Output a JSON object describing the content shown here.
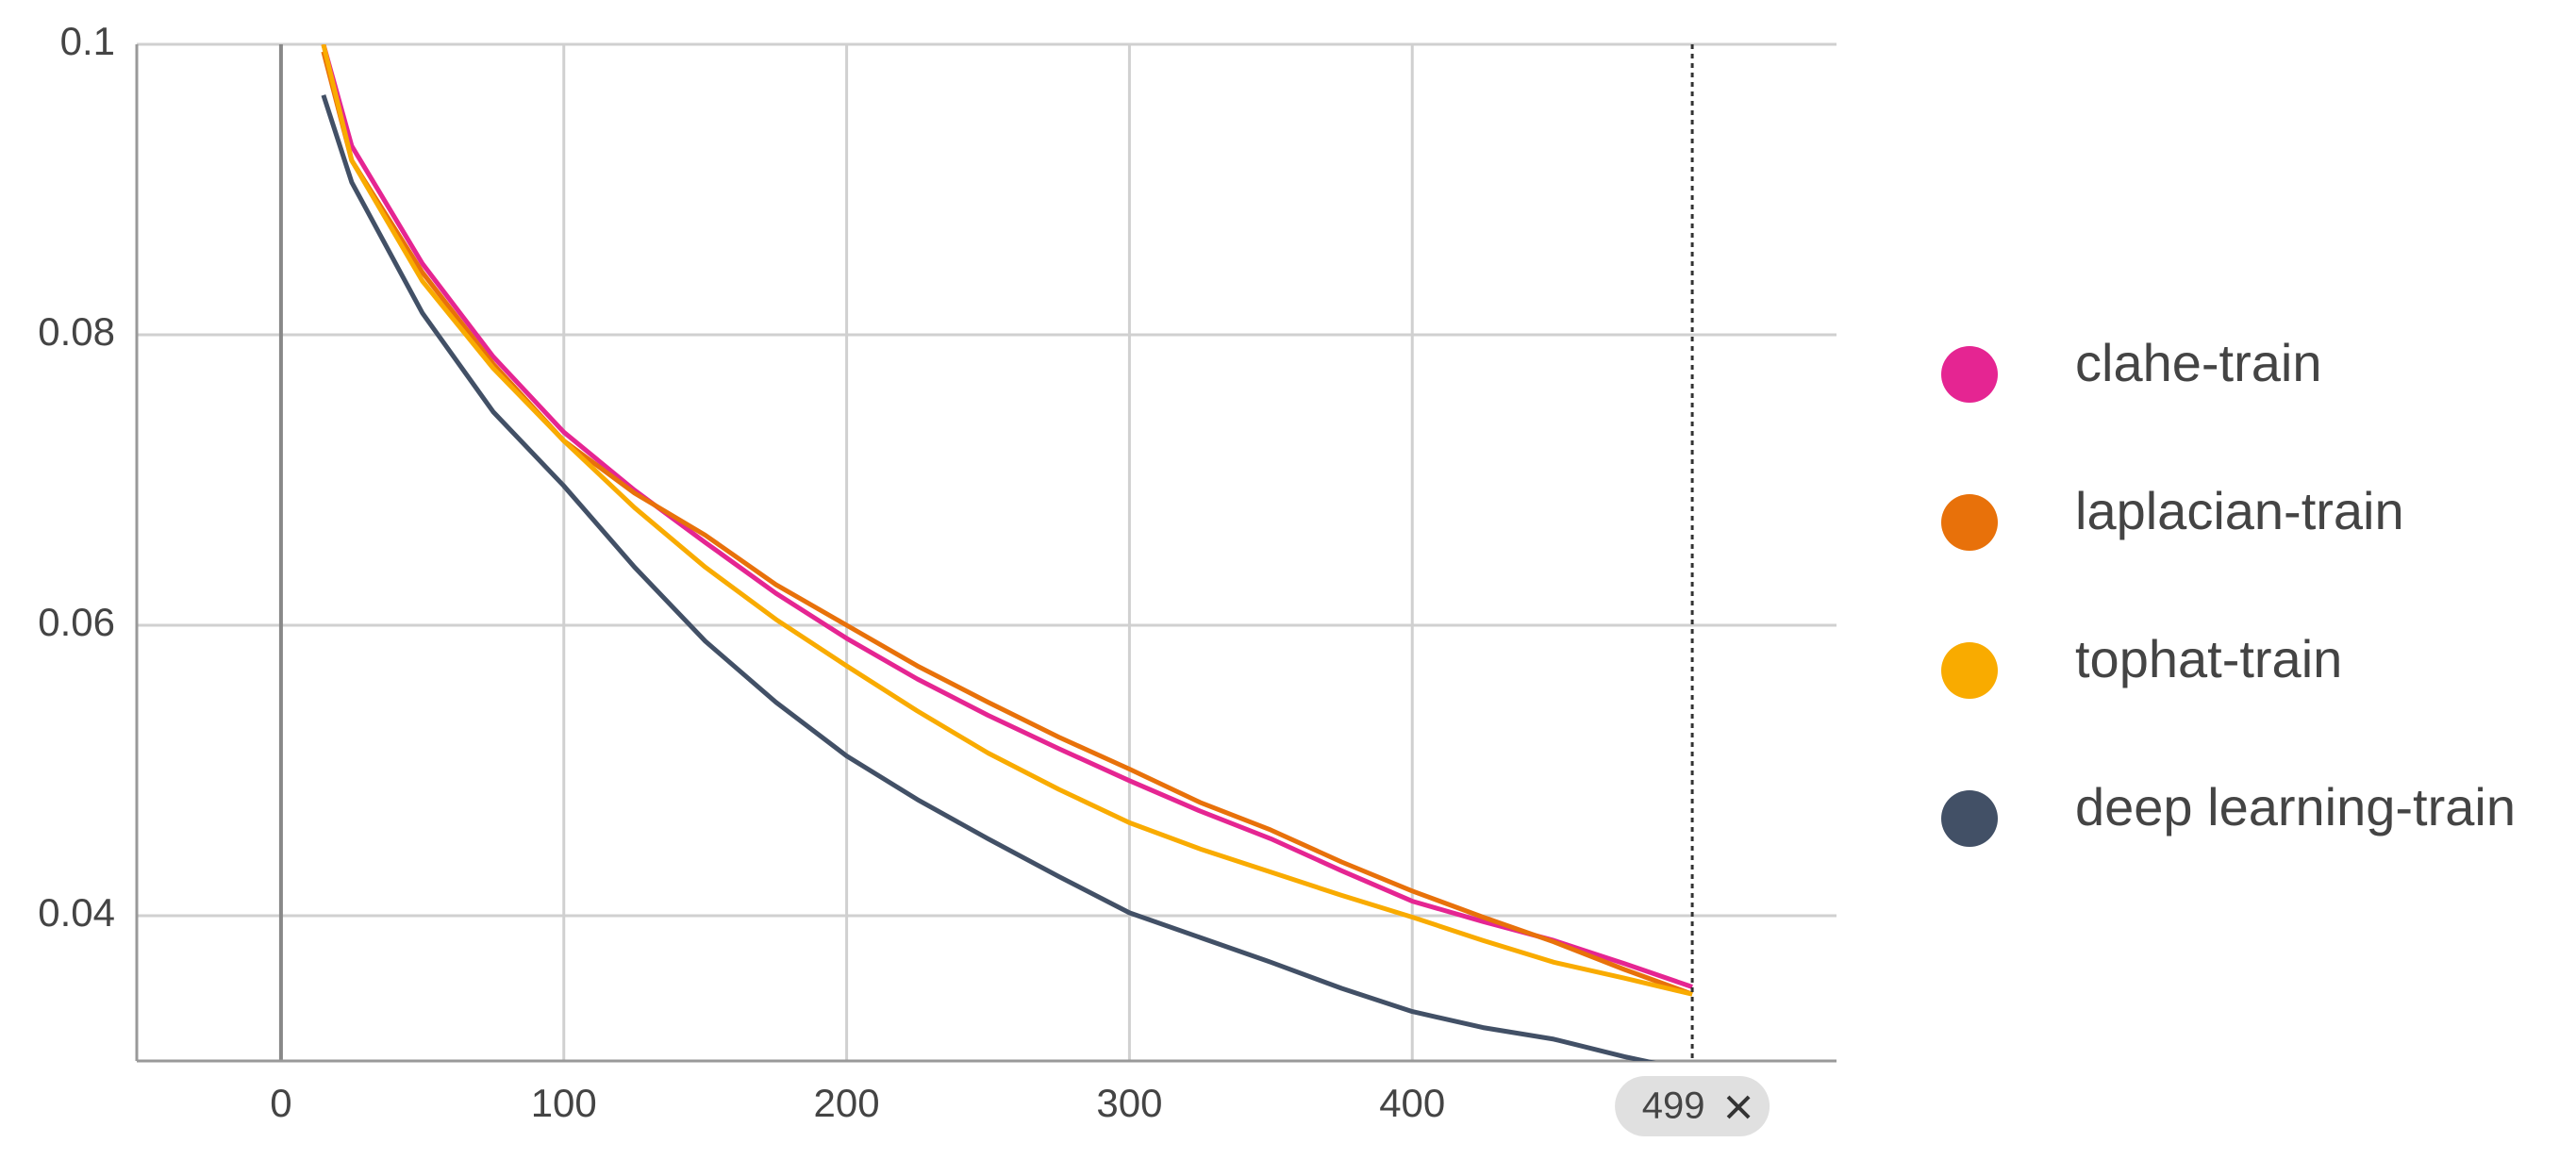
{
  "chart_data": {
    "type": "line",
    "x": [
      15,
      25,
      50,
      75,
      100,
      125,
      150,
      175,
      200,
      225,
      250,
      275,
      300,
      325,
      350,
      375,
      400,
      425,
      450,
      475,
      499
    ],
    "series": [
      {
        "name": "clahe-train",
        "color": "#e52592",
        "values": [
          0.1,
          0.093,
          0.0849,
          0.0785,
          0.0733,
          0.0693,
          0.0657,
          0.0622,
          0.0591,
          0.0563,
          0.0538,
          0.0515,
          0.0493,
          0.0472,
          0.0453,
          0.0431,
          0.041,
          0.0396,
          0.0383,
          0.0367,
          0.0351
        ]
      },
      {
        "name": "laplacian-train",
        "color": "#e8710a",
        "values": [
          0.0995,
          0.092,
          0.0843,
          0.078,
          0.0727,
          0.0691,
          0.0662,
          0.0628,
          0.06,
          0.0572,
          0.0547,
          0.0523,
          0.0501,
          0.0478,
          0.0459,
          0.0437,
          0.0417,
          0.0399,
          0.0382,
          0.0363,
          0.0346
        ]
      },
      {
        "name": "tophat-train",
        "color": "#f9ab00",
        "values": [
          0.1,
          0.092,
          0.0837,
          0.0777,
          0.0727,
          0.0681,
          0.064,
          0.0604,
          0.0572,
          0.0541,
          0.0512,
          0.0487,
          0.0464,
          0.0446,
          0.043,
          0.0414,
          0.0399,
          0.0383,
          0.0368,
          0.0357,
          0.0346
        ]
      },
      {
        "name": "deep learning-train",
        "color": "#425066",
        "values": [
          0.0965,
          0.0905,
          0.0815,
          0.0747,
          0.0696,
          0.064,
          0.0589,
          0.0547,
          0.051,
          0.048,
          0.0453,
          0.0427,
          0.0402,
          0.0385,
          0.0368,
          0.035,
          0.0334,
          0.0323,
          0.0315,
          0.0303,
          0.0293
        ]
      }
    ],
    "xlim": [
      -51,
      550
    ],
    "xticks": [
      0,
      100,
      200,
      300,
      400
    ],
    "ylim": [
      0.03,
      0.1
    ],
    "yticks": [
      0.04,
      0.06,
      0.08,
      0.1
    ],
    "grid": true,
    "legend": "right",
    "cursor_step": 499
  }
}
